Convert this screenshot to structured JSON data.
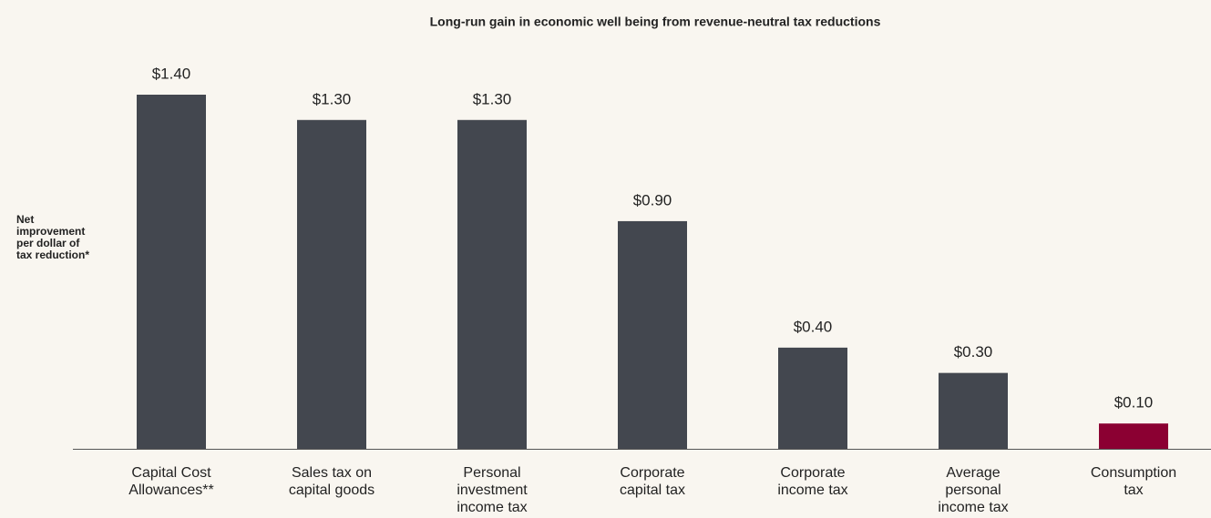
{
  "chart_data": {
    "type": "bar",
    "title": "Long-run gain in economic well being from revenue-neutral tax reductions",
    "y_label": "Net\nimprovement\nper dollar of\ntax reduction*",
    "categories": [
      "Capital Cost\nAllowances**",
      "Sales tax on\ncapital goods",
      "Personal\ninvestment\nincome tax",
      "Corporate\ncapital tax",
      "Corporate\nincome tax",
      "Average\npersonal\nincome tax",
      "Consumption\ntax"
    ],
    "values": [
      1.4,
      1.3,
      1.3,
      0.9,
      0.4,
      0.3,
      0.1
    ],
    "value_labels": [
      "$1.40",
      "$1.30",
      "$1.30",
      "$0.90",
      "$0.40",
      "$0.30",
      "$0.10"
    ],
    "colors": [
      "#43474f",
      "#43474f",
      "#43474f",
      "#43474f",
      "#43474f",
      "#43474f",
      "#8b0032"
    ],
    "ylim": [
      0,
      1.4
    ]
  }
}
